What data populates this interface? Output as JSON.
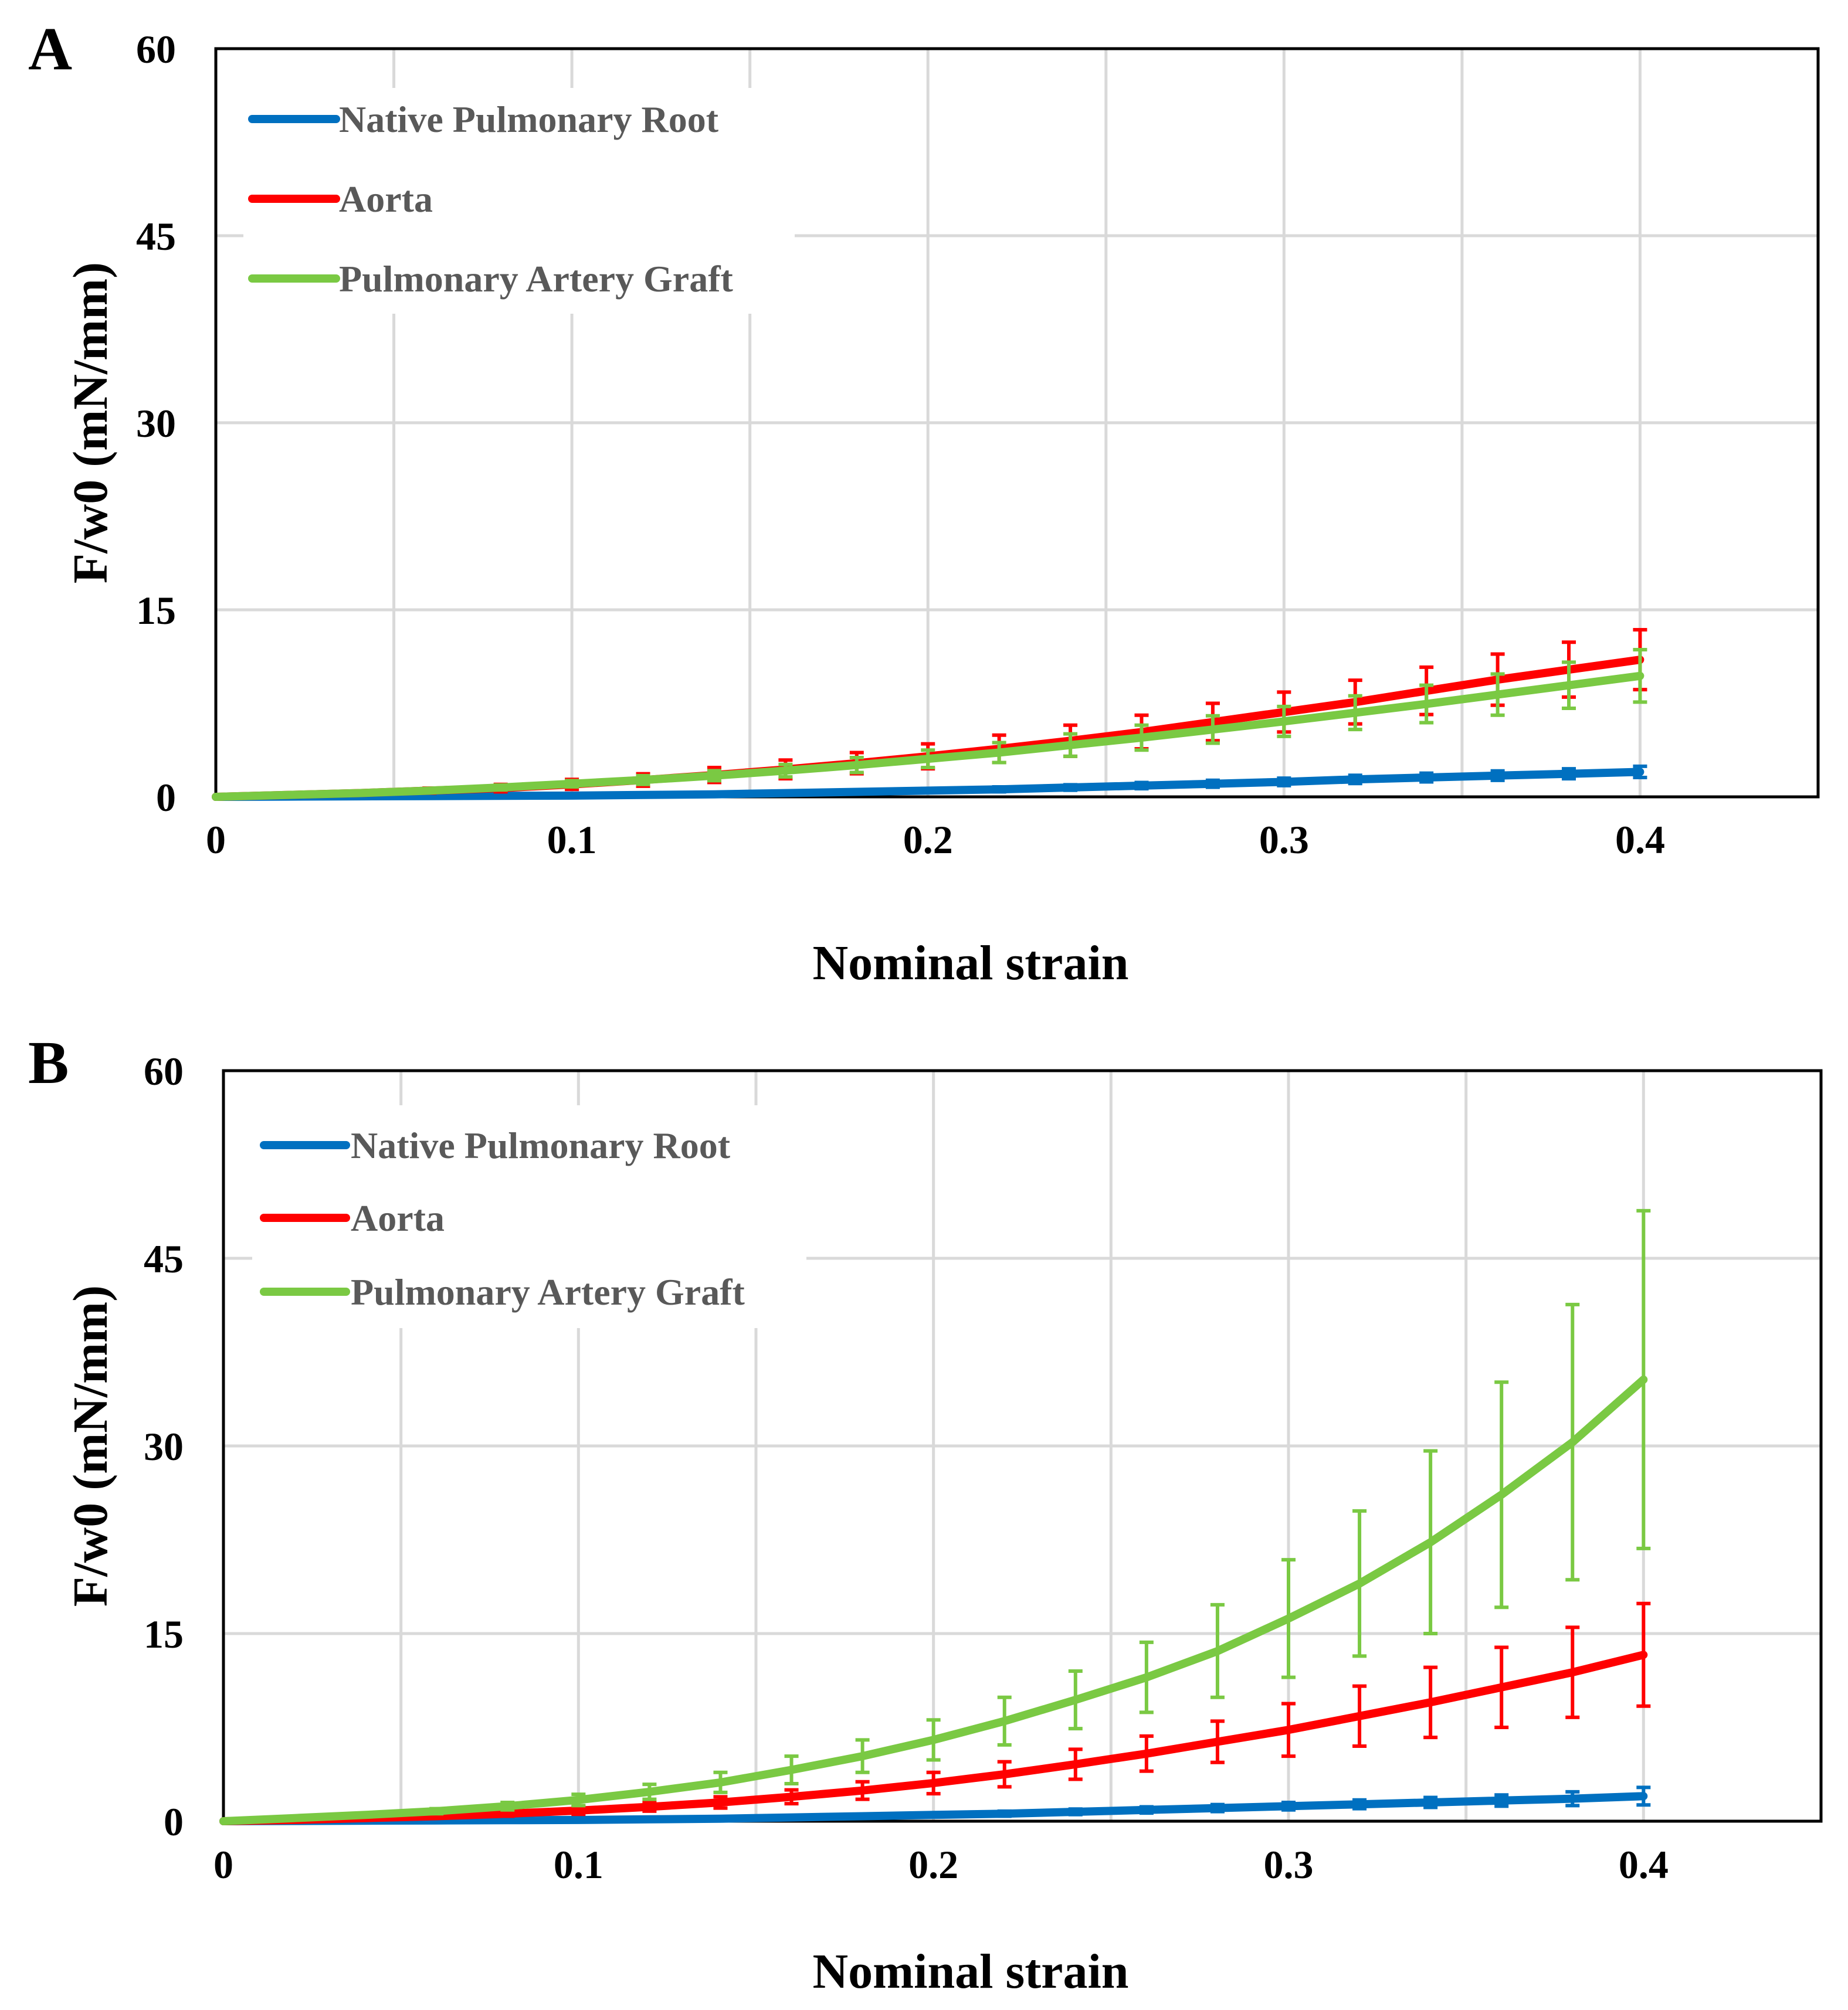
{
  "figure_title": "",
  "colors": {
    "native": "#0070c0",
    "aorta": "#ff0000",
    "graft": "#7ac943"
  },
  "chart_data": [
    {
      "panel": "A",
      "type": "line",
      "xlabel": "Nominal strain",
      "ylabel": "F/w0 (mN/mm)",
      "xlim": [
        0,
        0.45
      ],
      "ylim": [
        0,
        60
      ],
      "xticks": [
        0,
        0.1,
        0.2,
        0.3,
        0.4
      ],
      "xtick_labels": [
        "0",
        "0.1",
        "0.2",
        "0.3",
        "0.4"
      ],
      "yticks": [
        0,
        15,
        30,
        45,
        60
      ],
      "ytick_labels": [
        "0",
        "15",
        "30",
        "45",
        "60"
      ],
      "grid": true,
      "legend_position": "top-left",
      "x": [
        0,
        0.02,
        0.04,
        0.06,
        0.08,
        0.1,
        0.12,
        0.14,
        0.16,
        0.18,
        0.2,
        0.22,
        0.24,
        0.26,
        0.28,
        0.3,
        0.32,
        0.34,
        0.36,
        0.38,
        0.4
      ],
      "series": [
        {
          "name": "Native Pulmonary Root",
          "color_key": "native",
          "values": [
            0,
            0.02,
            0.04,
            0.06,
            0.08,
            0.1,
            0.15,
            0.2,
            0.3,
            0.4,
            0.5,
            0.6,
            0.75,
            0.9,
            1.05,
            1.2,
            1.4,
            1.55,
            1.7,
            1.85,
            2.0
          ],
          "errors": [
            0,
            0.02,
            0.03,
            0.04,
            0.05,
            0.06,
            0.08,
            0.1,
            0.12,
            0.15,
            0.17,
            0.2,
            0.22,
            0.25,
            0.28,
            0.3,
            0.33,
            0.35,
            0.38,
            0.4,
            0.45
          ]
        },
        {
          "name": "Aorta",
          "color_key": "aorta",
          "values": [
            0,
            0.15,
            0.3,
            0.5,
            0.7,
            1.0,
            1.35,
            1.75,
            2.2,
            2.7,
            3.25,
            3.85,
            4.5,
            5.2,
            6.0,
            6.8,
            7.6,
            8.5,
            9.4,
            10.2,
            11.0
          ],
          "errors": [
            0,
            0.05,
            0.1,
            0.2,
            0.3,
            0.4,
            0.5,
            0.6,
            0.75,
            0.85,
            1.0,
            1.1,
            1.25,
            1.35,
            1.5,
            1.6,
            1.75,
            1.9,
            2.05,
            2.2,
            2.4
          ]
        },
        {
          "name": "Pulmonary Artery Graft",
          "color_key": "graft",
          "values": [
            0,
            0.15,
            0.3,
            0.5,
            0.75,
            1.05,
            1.35,
            1.7,
            2.1,
            2.55,
            3.05,
            3.55,
            4.15,
            4.75,
            5.4,
            6.05,
            6.75,
            7.45,
            8.2,
            8.95,
            9.7
          ],
          "errors": [
            0,
            0.05,
            0.1,
            0.15,
            0.2,
            0.25,
            0.35,
            0.4,
            0.5,
            0.6,
            0.7,
            0.8,
            0.9,
            1.0,
            1.1,
            1.2,
            1.35,
            1.5,
            1.65,
            1.85,
            2.1
          ]
        }
      ]
    },
    {
      "panel": "B",
      "type": "line",
      "xlabel": "Nominal strain",
      "ylabel": "F/w0 (mN/mm)",
      "xlim": [
        0,
        0.45
      ],
      "ylim": [
        0,
        60
      ],
      "xticks": [
        0,
        0.1,
        0.2,
        0.3,
        0.4
      ],
      "xtick_labels": [
        "0",
        "0.1",
        "0.2",
        "0.3",
        "0.4"
      ],
      "yticks": [
        0,
        15,
        30,
        45,
        60
      ],
      "ytick_labels": [
        "0",
        "15",
        "30",
        "45",
        "60"
      ],
      "grid": true,
      "legend_position": "top-left",
      "x": [
        0,
        0.02,
        0.04,
        0.06,
        0.08,
        0.1,
        0.12,
        0.14,
        0.16,
        0.18,
        0.2,
        0.22,
        0.24,
        0.26,
        0.28,
        0.3,
        0.32,
        0.34,
        0.36,
        0.38,
        0.4
      ],
      "series": [
        {
          "name": "Native Pulmonary Root",
          "color_key": "native",
          "values": [
            0,
            0.02,
            0.04,
            0.06,
            0.08,
            0.1,
            0.15,
            0.2,
            0.3,
            0.4,
            0.5,
            0.6,
            0.75,
            0.9,
            1.05,
            1.2,
            1.35,
            1.5,
            1.65,
            1.8,
            2.0
          ],
          "errors": [
            0,
            0.02,
            0.03,
            0.04,
            0.05,
            0.06,
            0.08,
            0.1,
            0.12,
            0.15,
            0.17,
            0.2,
            0.22,
            0.25,
            0.28,
            0.3,
            0.35,
            0.4,
            0.45,
            0.55,
            0.7
          ]
        },
        {
          "name": "Aorta",
          "color_key": "aorta",
          "values": [
            0,
            0.1,
            0.25,
            0.4,
            0.6,
            0.85,
            1.15,
            1.5,
            1.95,
            2.45,
            3.05,
            3.75,
            4.55,
            5.4,
            6.35,
            7.3,
            8.4,
            9.5,
            10.7,
            11.9,
            13.3
          ],
          "errors": [
            0,
            0.05,
            0.1,
            0.15,
            0.2,
            0.3,
            0.35,
            0.45,
            0.55,
            0.7,
            0.85,
            1.0,
            1.2,
            1.4,
            1.65,
            2.1,
            2.4,
            2.8,
            3.2,
            3.6,
            4.1
          ]
        },
        {
          "name": "Pulmonary Artery Graft",
          "color_key": "graft",
          "values": [
            0,
            0.25,
            0.5,
            0.8,
            1.2,
            1.7,
            2.35,
            3.1,
            4.1,
            5.2,
            6.5,
            8.0,
            9.7,
            11.5,
            13.6,
            16.2,
            19.0,
            22.3,
            26.1,
            30.3,
            35.3
          ],
          "errors": [
            0,
            0.05,
            0.1,
            0.2,
            0.3,
            0.45,
            0.6,
            0.8,
            1.1,
            1.3,
            1.6,
            1.9,
            2.3,
            2.8,
            3.7,
            4.7,
            5.8,
            7.3,
            9.0,
            11.0,
            13.5
          ]
        }
      ]
    }
  ]
}
